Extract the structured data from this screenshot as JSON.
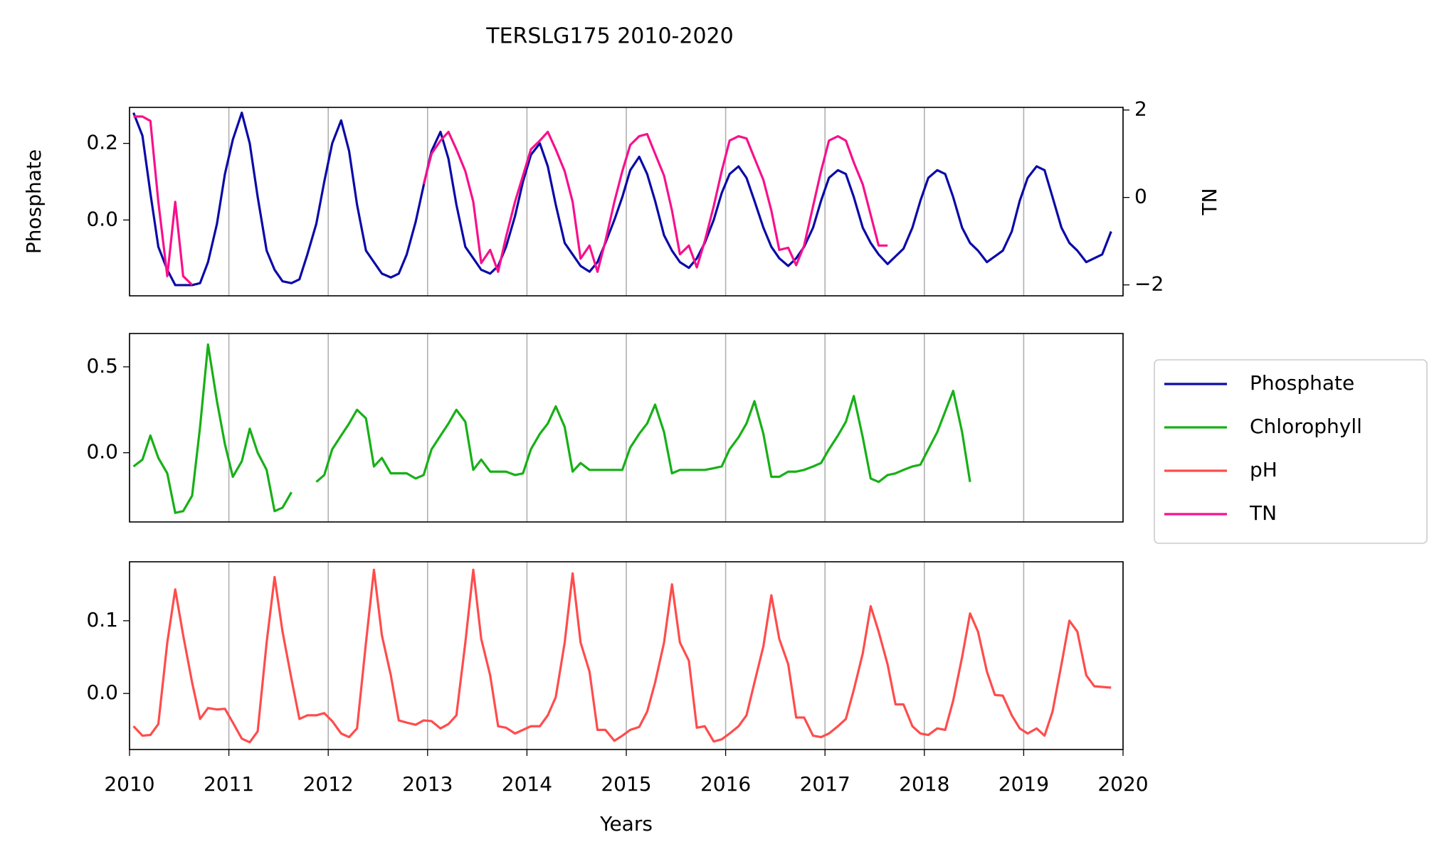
{
  "chart_data": {
    "type": "line",
    "title": "TERSLG175 2010-2020",
    "xlabel": "Years",
    "xlim": [
      2010,
      2020
    ],
    "xticks": [
      2010,
      2011,
      2012,
      2013,
      2014,
      2015,
      2016,
      2017,
      2018,
      2019,
      2020
    ],
    "grid": "x",
    "legend": "right",
    "x": [
      2010.04,
      2010.13,
      2010.21,
      2010.29,
      2010.38,
      2010.46,
      2010.54,
      2010.63,
      2010.71,
      2010.79,
      2010.88,
      2010.96,
      2011.04,
      2011.13,
      2011.21,
      2011.29,
      2011.38,
      2011.46,
      2011.54,
      2011.63,
      2011.71,
      2011.79,
      2011.88,
      2011.96,
      2012.04,
      2012.13,
      2012.21,
      2012.29,
      2012.38,
      2012.46,
      2012.54,
      2012.63,
      2012.71,
      2012.79,
      2012.88,
      2012.96,
      2013.04,
      2013.13,
      2013.21,
      2013.29,
      2013.38,
      2013.46,
      2013.54,
      2013.63,
      2013.71,
      2013.79,
      2013.88,
      2013.96,
      2014.04,
      2014.13,
      2014.21,
      2014.29,
      2014.38,
      2014.46,
      2014.54,
      2014.63,
      2014.71,
      2014.79,
      2014.88,
      2014.96,
      2015.04,
      2015.13,
      2015.21,
      2015.29,
      2015.38,
      2015.46,
      2015.54,
      2015.63,
      2015.71,
      2015.79,
      2015.88,
      2015.96,
      2016.04,
      2016.13,
      2016.21,
      2016.29,
      2016.38,
      2016.46,
      2016.54,
      2016.63,
      2016.71,
      2016.79,
      2016.88,
      2016.96,
      2017.04,
      2017.13,
      2017.21,
      2017.29,
      2017.38,
      2017.46,
      2017.54,
      2017.63,
      2017.71,
      2017.79,
      2017.88,
      2017.96,
      2018.04,
      2018.13,
      2018.21,
      2018.29,
      2018.38,
      2018.46,
      2018.54,
      2018.63,
      2018.71,
      2018.79,
      2018.88,
      2018.96,
      2019.04,
      2019.13,
      2019.21,
      2019.29,
      2019.38,
      2019.46,
      2019.54,
      2019.63,
      2019.71,
      2019.79,
      2019.88,
      2019.96
    ],
    "panels": [
      {
        "ylabel": "Phosphate",
        "ylim": [
          -0.198,
          0.294
        ],
        "yticks": [
          {
            "value": 0,
            "label": "0.0"
          },
          0.2
        ],
        "y2label": "TN",
        "y2lim": [
          -2.25,
          2.06
        ],
        "y2ticks": [
          {
            "value": -2,
            "label": "−2"
          },
          0,
          2
        ],
        "series": [
          {
            "name": "Phosphate",
            "color": "#0a0aa8",
            "values": [
              0.28,
              0.22,
              0.07,
              -0.07,
              -0.13,
              -0.17,
              -0.17,
              -0.17,
              -0.165,
              -0.11,
              -0.01,
              0.12,
              0.21,
              0.28,
              0.2,
              0.06,
              -0.08,
              -0.13,
              -0.16,
              -0.165,
              -0.155,
              -0.09,
              -0.01,
              0.1,
              0.2,
              0.26,
              0.18,
              0.04,
              -0.08,
              -0.11,
              -0.14,
              -0.15,
              -0.14,
              -0.09,
              -0.005,
              0.09,
              0.18,
              0.23,
              0.16,
              0.04,
              -0.07,
              -0.1,
              -0.13,
              -0.14,
              -0.12,
              -0.07,
              0.01,
              0.1,
              0.17,
              0.2,
              0.14,
              0.04,
              -0.06,
              -0.09,
              -0.12,
              -0.135,
              -0.11,
              -0.06,
              0.0,
              0.06,
              0.13,
              0.165,
              0.12,
              0.05,
              -0.04,
              -0.08,
              -0.11,
              -0.125,
              -0.1,
              -0.06,
              0.0,
              0.07,
              0.12,
              0.14,
              0.11,
              0.05,
              -0.02,
              -0.07,
              -0.1,
              -0.12,
              -0.1,
              -0.07,
              -0.02,
              0.05,
              0.11,
              0.13,
              0.12,
              0.06,
              -0.02,
              -0.06,
              -0.09,
              -0.115,
              -0.095,
              -0.075,
              -0.02,
              0.05,
              0.11,
              0.13,
              0.12,
              0.06,
              -0.02,
              -0.06,
              -0.08,
              -0.11,
              -0.095,
              -0.08,
              -0.03,
              0.05,
              0.11,
              0.14,
              0.13,
              0.06,
              -0.02,
              -0.06,
              -0.08,
              -0.11,
              -0.1,
              -0.09,
              -0.03,
              null
            ]
          },
          {
            "name": "TN",
            "color": "#f8108c",
            "axis": "y2",
            "values": [
              1.85,
              1.85,
              1.75,
              -0.1,
              -1.8,
              -0.1,
              -1.8,
              -2.0,
              null,
              null,
              null,
              null,
              null,
              null,
              null,
              null,
              null,
              null,
              null,
              null,
              null,
              null,
              null,
              null,
              null,
              null,
              null,
              null,
              null,
              null,
              null,
              null,
              null,
              null,
              null,
              0.3,
              1.0,
              1.3,
              1.5,
              1.1,
              0.6,
              -0.1,
              -1.5,
              -1.2,
              -1.7,
              -0.9,
              -0.1,
              0.5,
              1.1,
              1.3,
              1.5,
              1.1,
              0.6,
              -0.1,
              -1.4,
              -1.1,
              -1.7,
              -1.0,
              -0.1,
              0.6,
              1.2,
              1.4,
              1.45,
              1.0,
              0.5,
              -0.3,
              -1.3,
              -1.1,
              -1.6,
              -1.0,
              -0.2,
              0.6,
              1.3,
              1.4,
              1.35,
              0.9,
              0.4,
              -0.3,
              -1.2,
              -1.15,
              -1.55,
              -1.1,
              -0.2,
              0.6,
              1.3,
              1.4,
              1.3,
              0.8,
              0.3,
              -0.4,
              -1.1,
              -1.1,
              null,
              null,
              null,
              null,
              null,
              null,
              null,
              null,
              null,
              null,
              null,
              null,
              null,
              null,
              null,
              null,
              null,
              null,
              null,
              null,
              null,
              null,
              null,
              null,
              null,
              null,
              null,
              null
            ]
          }
        ]
      },
      {
        "ylim": [
          -0.403,
          0.694
        ],
        "yticks": [
          {
            "value": 0,
            "label": "0.0"
          },
          0.5
        ],
        "series": [
          {
            "name": "Chlorophyll",
            "color": "#17b017",
            "values": [
              -0.08,
              -0.04,
              0.1,
              -0.03,
              -0.12,
              -0.35,
              -0.34,
              -0.25,
              0.15,
              0.63,
              0.3,
              0.05,
              -0.14,
              -0.05,
              0.14,
              0.0,
              -0.1,
              -0.34,
              -0.32,
              -0.23,
              null,
              null,
              -0.17,
              -0.13,
              0.02,
              0.1,
              0.17,
              0.25,
              0.2,
              -0.08,
              -0.03,
              -0.12,
              -0.12,
              -0.12,
              -0.15,
              -0.13,
              0.02,
              0.1,
              0.17,
              0.25,
              0.18,
              -0.1,
              -0.04,
              -0.11,
              -0.11,
              -0.11,
              -0.13,
              -0.12,
              0.02,
              0.11,
              0.17,
              0.27,
              0.15,
              -0.11,
              -0.06,
              -0.1,
              -0.1,
              -0.1,
              -0.1,
              -0.1,
              0.03,
              0.11,
              0.17,
              0.28,
              0.12,
              -0.12,
              -0.1,
              -0.1,
              -0.1,
              -0.1,
              -0.09,
              -0.08,
              0.02,
              0.09,
              0.17,
              0.3,
              0.11,
              -0.14,
              -0.14,
              -0.11,
              -0.11,
              -0.1,
              -0.08,
              -0.06,
              0.02,
              0.1,
              0.18,
              0.33,
              0.09,
              -0.15,
              -0.17,
              -0.13,
              -0.12,
              -0.1,
              -0.08,
              -0.07,
              0.02,
              0.12,
              0.24,
              0.36,
              0.12,
              -0.17,
              null,
              null,
              null,
              null,
              null,
              null,
              null,
              null,
              null,
              null,
              null,
              null,
              null,
              null,
              null,
              null,
              null,
              null
            ]
          }
        ]
      },
      {
        "ylim": [
          -0.077,
          0.181
        ],
        "yticks": [
          {
            "value": 0,
            "label": "0.0"
          },
          0.1
        ],
        "series": [
          {
            "name": "pH",
            "color": "#ff4c4c",
            "values": [
              -0.045,
              -0.058,
              -0.057,
              -0.042,
              0.07,
              0.143,
              0.08,
              0.015,
              -0.035,
              -0.02,
              -0.022,
              -0.021,
              -0.04,
              -0.062,
              -0.067,
              -0.052,
              0.07,
              0.16,
              0.085,
              0.02,
              -0.035,
              -0.03,
              -0.03,
              -0.027,
              -0.038,
              -0.055,
              -0.06,
              -0.048,
              0.07,
              0.17,
              0.08,
              0.025,
              -0.037,
              -0.04,
              -0.043,
              -0.037,
              -0.038,
              -0.048,
              -0.042,
              -0.03,
              0.07,
              0.17,
              0.075,
              0.025,
              -0.045,
              -0.047,
              -0.055,
              -0.05,
              -0.045,
              -0.045,
              -0.03,
              -0.005,
              0.07,
              0.165,
              0.07,
              0.03,
              -0.05,
              -0.05,
              -0.065,
              -0.058,
              -0.05,
              -0.046,
              -0.025,
              0.015,
              0.07,
              0.15,
              0.07,
              0.045,
              -0.047,
              -0.045,
              -0.066,
              -0.063,
              -0.055,
              -0.045,
              -0.03,
              0.015,
              0.065,
              0.135,
              0.075,
              0.04,
              -0.033,
              -0.033,
              -0.058,
              -0.06,
              -0.055,
              -0.045,
              -0.035,
              0.005,
              0.055,
              0.12,
              0.085,
              0.04,
              -0.015,
              -0.015,
              -0.045,
              -0.055,
              -0.057,
              -0.048,
              -0.05,
              -0.01,
              0.05,
              0.11,
              0.085,
              0.03,
              -0.002,
              -0.003,
              -0.03,
              -0.048,
              -0.055,
              -0.048,
              -0.058,
              -0.025,
              0.04,
              0.1,
              0.085,
              0.025,
              0.01,
              0.009,
              0.008,
              null
            ]
          }
        ]
      }
    ]
  }
}
